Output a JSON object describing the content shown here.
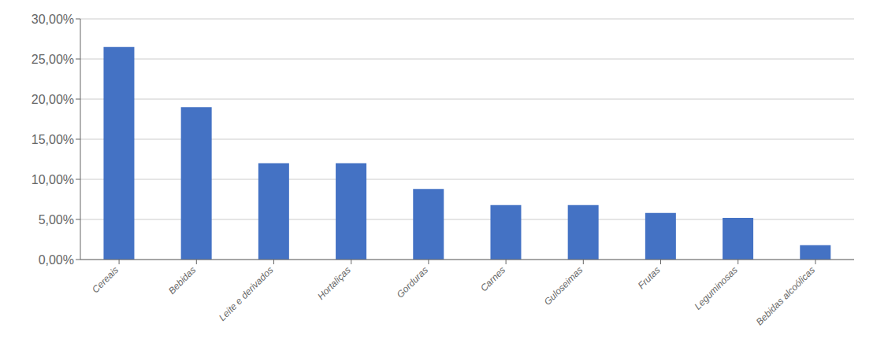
{
  "chart_data": {
    "type": "bar",
    "categories": [
      "Cereais",
      "Bebidas",
      "Leite e derivados",
      "Hortaliças",
      "Gorduras",
      "Carnes",
      "Guloseimas",
      "Frutas",
      "Leguminosas",
      "Bebidas alcoólicas"
    ],
    "values": [
      0.265,
      0.19,
      0.12,
      0.12,
      0.088,
      0.068,
      0.068,
      0.058,
      0.052,
      0.018
    ],
    "color": "#4472C4",
    "ylim": [
      0,
      0.3
    ],
    "yticks": [
      {
        "value": 0.0,
        "label": "0,00%"
      },
      {
        "value": 0.05,
        "label": "5,00%"
      },
      {
        "value": 0.1,
        "label": "10,00%"
      },
      {
        "value": 0.15,
        "label": "15,00%"
      },
      {
        "value": 0.2,
        "label": "20,00%"
      },
      {
        "value": 0.25,
        "label": "25,00%"
      },
      {
        "value": 0.3,
        "label": "30,00%"
      }
    ],
    "grid": true
  }
}
